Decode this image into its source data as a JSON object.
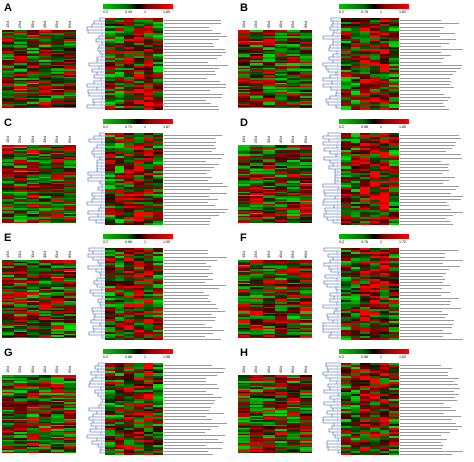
{
  "timepoints": [
    "15d",
    "25d",
    "35d",
    "45d",
    "55d",
    "65d"
  ],
  "panels": [
    {
      "label": "A",
      "scale": [
        "0.2",
        "0.49",
        "1",
        "1.65"
      ]
    },
    {
      "label": "B",
      "scale": [
        "0.2",
        "0.78",
        "1",
        "1.62"
      ]
    },
    {
      "label": "C",
      "scale": [
        "0.2",
        "0.71",
        "1",
        "1.67"
      ]
    },
    {
      "label": "D",
      "scale": [
        "0.2",
        "0.56",
        "1",
        "1.60"
      ]
    },
    {
      "label": "E",
      "scale": [
        "0.2",
        "0.66",
        "1",
        "1.55"
      ]
    },
    {
      "label": "F",
      "scale": [
        "0.2",
        "0.76",
        "1",
        "1.72"
      ]
    },
    {
      "label": "G",
      "scale": [
        "0.2",
        "0.66",
        "1",
        "1.58"
      ]
    },
    {
      "label": "H",
      "scale": [
        "0.2",
        "0.56",
        "1",
        "1.62"
      ]
    }
  ],
  "colors": {
    "low": "#00c400",
    "mid": "#000000",
    "high": "#ff0000"
  }
}
